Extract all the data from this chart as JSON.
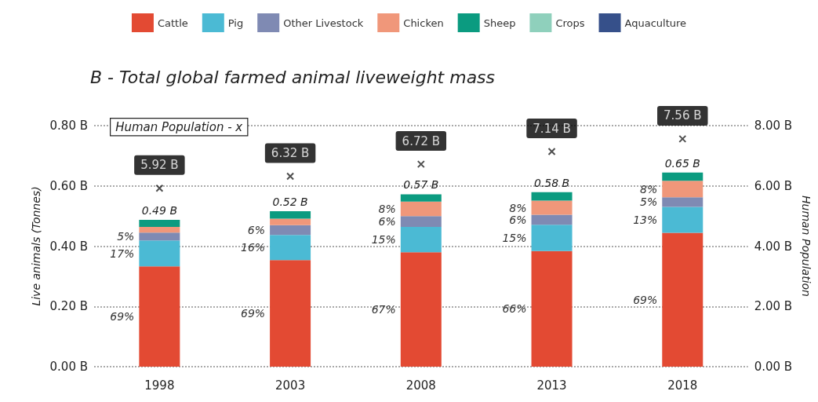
{
  "chart_data": {
    "type": "bar",
    "stacked": true,
    "title": "B - Total global farmed animal liveweight mass",
    "ylabel": "Live animals (Tonnes)",
    "y2label": "Human Population",
    "categories": [
      "1998",
      "2003",
      "2008",
      "2013",
      "2018"
    ],
    "series": [
      {
        "name": "Cattle",
        "color": "#e34a33",
        "values": [
          0.333,
          0.354,
          0.38,
          0.384,
          0.444
        ]
      },
      {
        "name": "Pig",
        "color": "#4bbad4",
        "values": [
          0.086,
          0.083,
          0.084,
          0.087,
          0.086
        ]
      },
      {
        "name": "Other Livestock",
        "color": "#7f8ab3",
        "values": [
          0.026,
          0.033,
          0.036,
          0.033,
          0.032
        ]
      },
      {
        "name": "Chicken",
        "color": "#f0977a",
        "values": [
          0.019,
          0.021,
          0.048,
          0.047,
          0.055
        ]
      },
      {
        "name": "Sheep",
        "color": "#0b9b80",
        "values": [
          0.023,
          0.025,
          0.024,
          0.028,
          0.027
        ]
      },
      {
        "name": "Crops",
        "color": "#8fd0bc",
        "values": [
          0,
          0,
          0,
          0,
          0
        ]
      },
      {
        "name": "Aquaculture",
        "color": "#36508a",
        "values": [
          0,
          0,
          0,
          0,
          0
        ]
      },
      {
        "type": "scatter",
        "axis": "y2",
        "marker": "cross",
        "color": "#222222",
        "values": [
          5.92,
          6.32,
          6.72,
          7.14,
          7.56
        ],
        "value_labels": [
          "5.92 B",
          "6.32 B",
          "6.72 B",
          "7.14 B",
          "7.56 B"
        ]
      }
    ],
    "totals": [
      "0.49 B",
      "0.52 B",
      "0.57 B",
      "0.58 B",
      "0.65 B"
    ],
    "ylim": [
      0,
      0.8
    ],
    "yticks": [
      {
        "value": 0,
        "label": "0.00 B"
      },
      {
        "value": 0.2,
        "label": "0.20 B"
      },
      {
        "value": 0.4,
        "label": "0.40 B"
      },
      {
        "value": 0.6,
        "label": "0.60 B"
      },
      {
        "value": 0.8,
        "label": "0.80 B"
      }
    ],
    "y2lim": [
      0,
      8
    ],
    "y2ticks": [
      {
        "value": 0,
        "label": "0.00 B"
      },
      {
        "value": 2,
        "label": "2.00 B"
      },
      {
        "value": 4,
        "label": "4.00 B"
      },
      {
        "value": 6,
        "label": "6.00 B"
      },
      {
        "value": 8,
        "label": "8.00 B"
      }
    ],
    "grid": "y",
    "legend": "top",
    "annotations": [
      "Human Population - x",
      "69%",
      "17%",
      "5%",
      "69%",
      "16%",
      "6%",
      "67%",
      "15%",
      "6%",
      "8%",
      "66%",
      "15%",
      "6%",
      "8%",
      "69%",
      "13%",
      "5%",
      "8%"
    ]
  }
}
